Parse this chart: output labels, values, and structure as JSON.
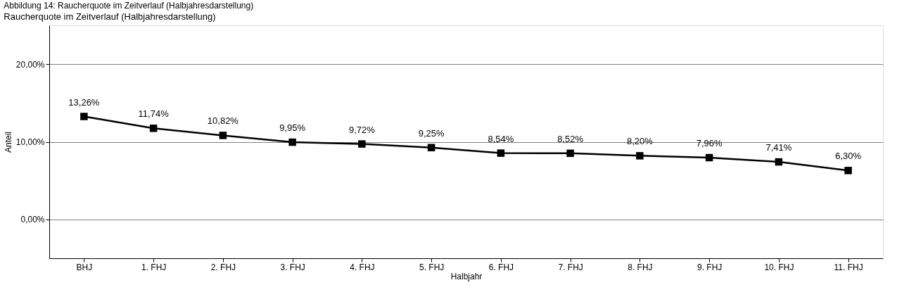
{
  "chart_data": {
    "type": "line",
    "title": "Abbildung 14: Raucherquote im Zeitverlauf (Halbjahresdarstellung)",
    "subtitle": "Raucherquote im Zeitverlauf (Halbjahresdarstellung)",
    "xlabel": "Halbjahr",
    "ylabel": "Anteil",
    "categories": [
      "BHJ",
      "1. FHJ",
      "2. FHJ",
      "3. FHJ",
      "4. FHJ",
      "5. FHJ",
      "6. FHJ",
      "7. FHJ",
      "8. FHJ",
      "9. FHJ",
      "10. FHJ",
      "11. FHJ"
    ],
    "series": [
      {
        "color": "#000000",
        "values": [
          13.26,
          11.74,
          10.82,
          9.95,
          9.72,
          9.25,
          8.54,
          8.52,
          8.2,
          7.96,
          7.41,
          6.3
        ],
        "value_labels": [
          "13,26%",
          "11,74%",
          "10,82%",
          "9,95%",
          "9,72%",
          "9,25%",
          "8,54%",
          "8,52%",
          "8,20%",
          "7,96%",
          "7,41%",
          "6,30%"
        ]
      }
    ],
    "ylim": [
      -5,
      25
    ],
    "yticks": [
      {
        "value": 0,
        "label": "0,00%"
      },
      {
        "value": 10,
        "label": "10,00%"
      },
      {
        "value": 20,
        "label": "20,00%"
      }
    ],
    "grid": "y",
    "marker": "square",
    "line_style": "solid"
  }
}
